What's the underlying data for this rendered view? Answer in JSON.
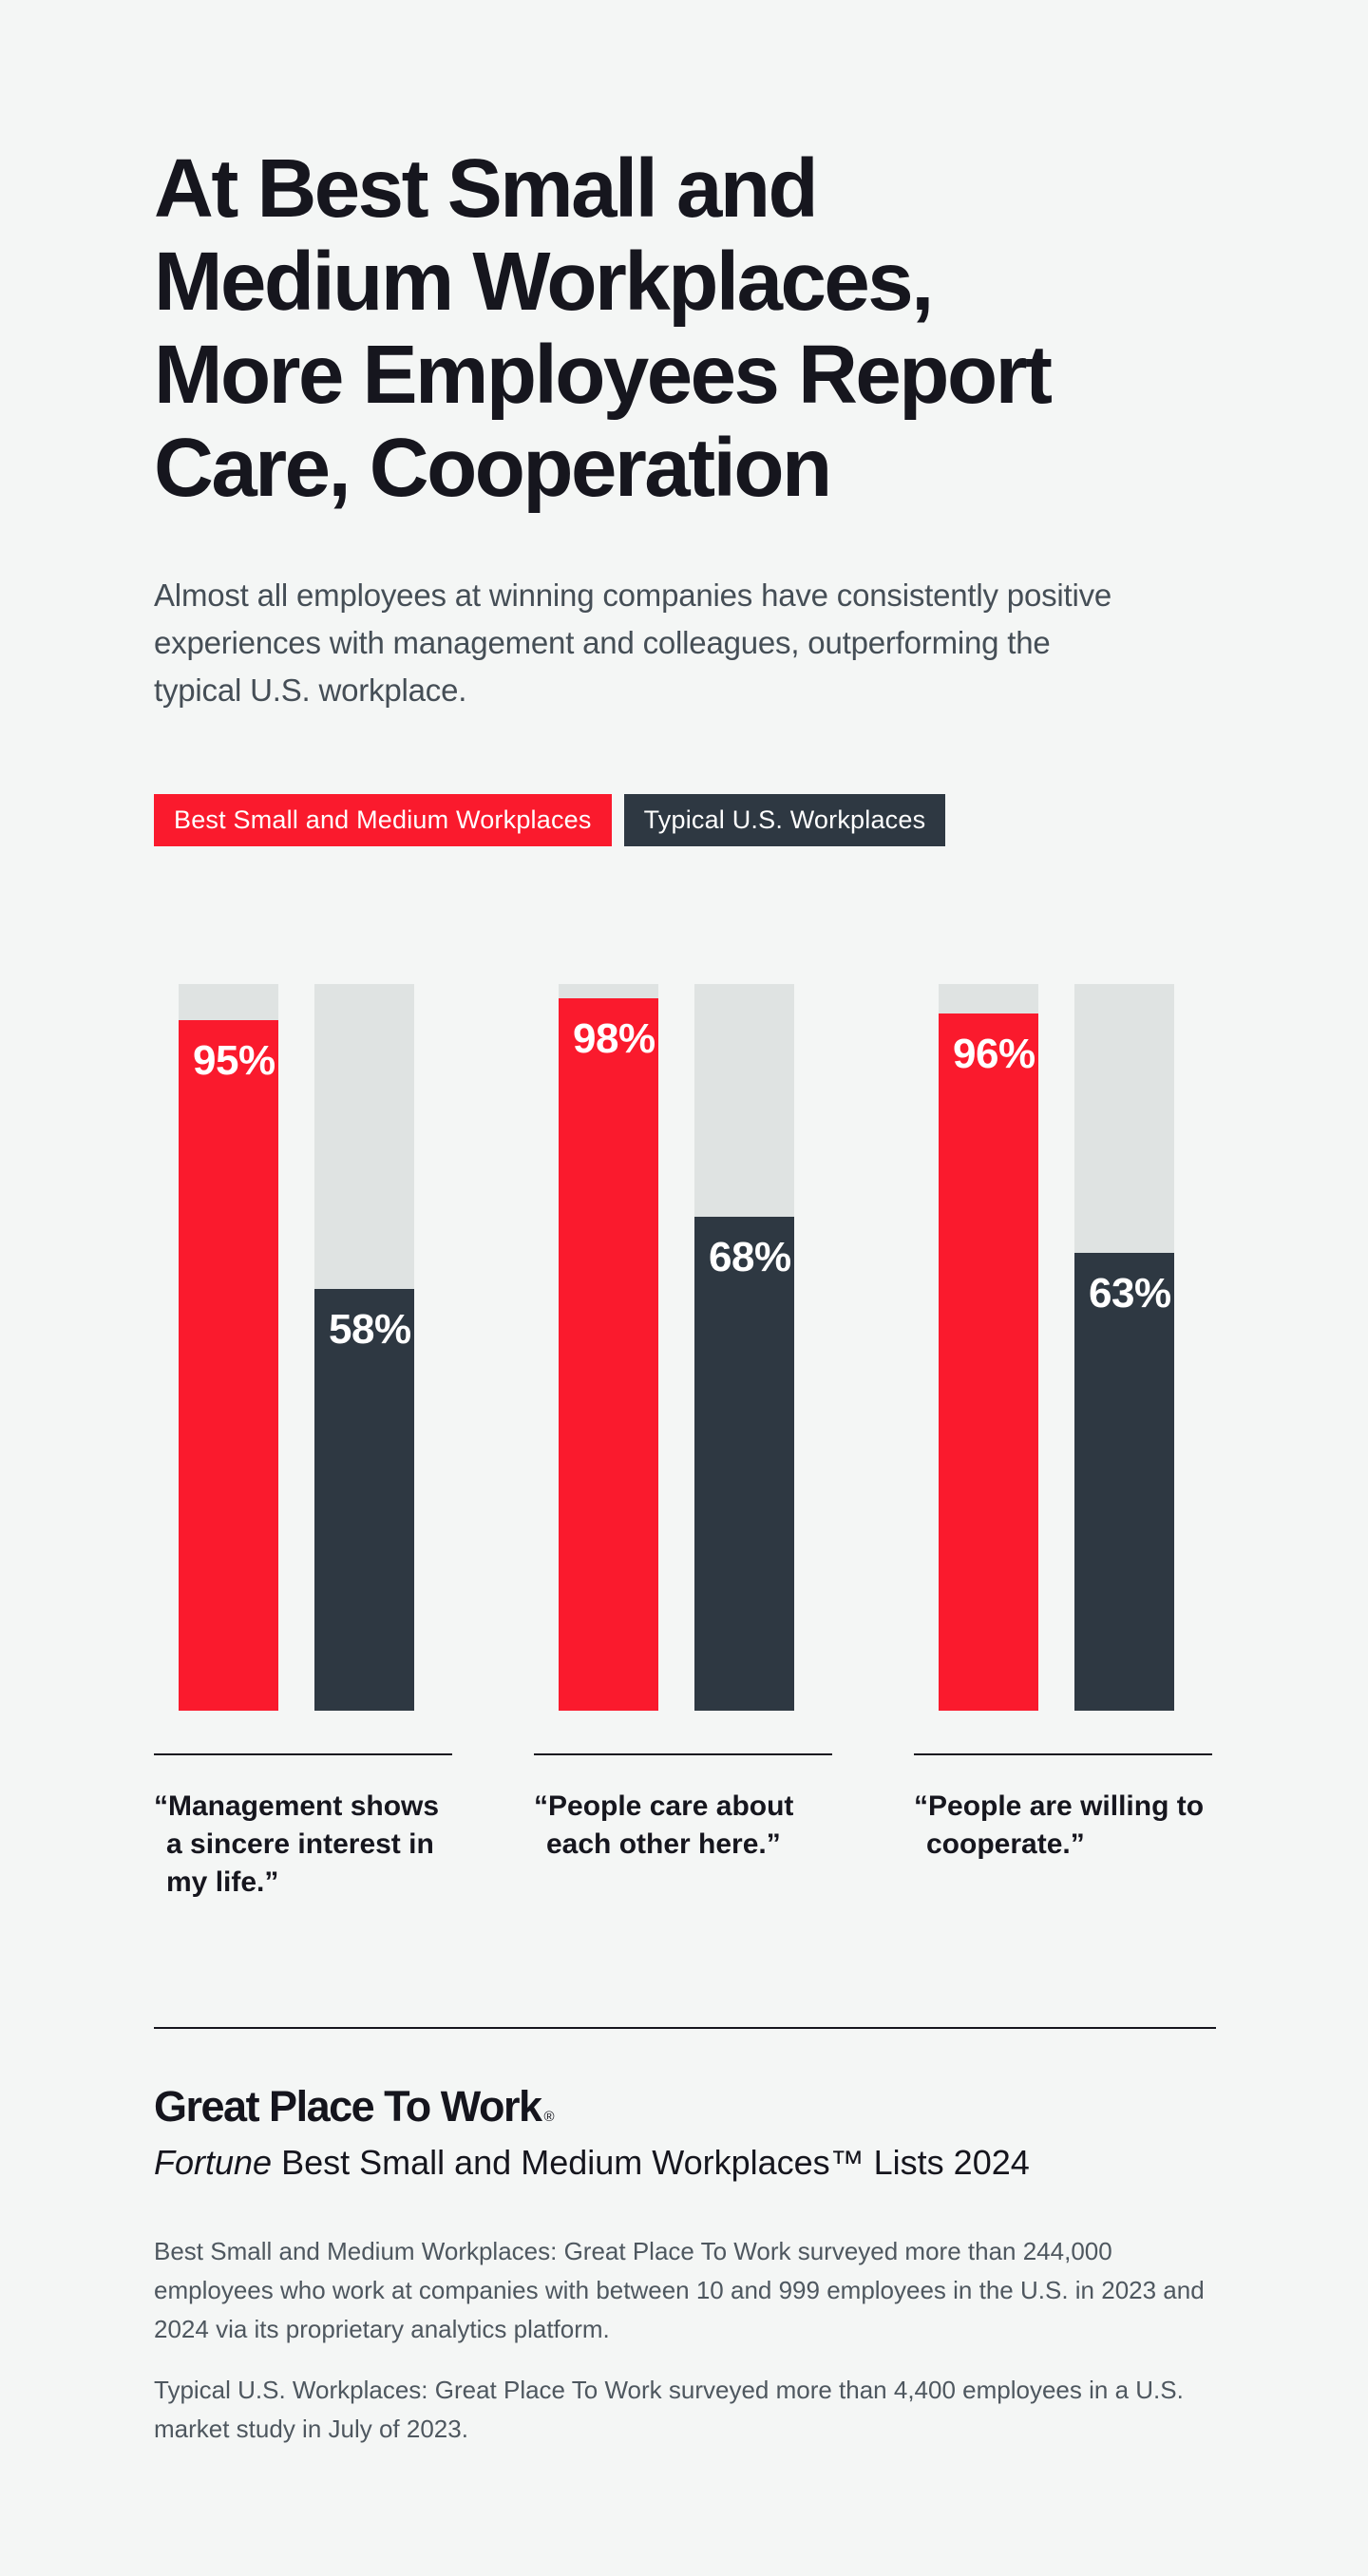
{
  "page": {
    "background": "#F4F6F5",
    "title_lines": [
      "At Best Small and",
      "Medium Workplaces,",
      "More Employees Report",
      "Care, Cooperation"
    ],
    "subtitle": "Almost all employees at winning companies have consistently positive experiences with management and colleagues, outperforming the typical U.S. workplace."
  },
  "legend": {
    "best_label": "Best Small and Medium Workplaces",
    "typical_label": "Typical U.S. Workplaces",
    "best_color": "#FA1A2D",
    "typical_color": "#2E3842"
  },
  "chart_data": {
    "type": "bar",
    "orientation": "vertical",
    "unit": "percent",
    "ylim": [
      0,
      100
    ],
    "grid": false,
    "legend_position": "top",
    "track_color": "#DFE3E2",
    "categories": [
      "“Management shows a sincere interest in my life.”",
      "“People care about each other here.”",
      "“People are willing to cooperate.”"
    ],
    "series": [
      {
        "name": "Best Small and Medium Workplaces",
        "color": "#FA1A2D",
        "values": [
          95,
          98,
          96
        ]
      },
      {
        "name": "Typical U.S. Workplaces",
        "color": "#2E3842",
        "values": [
          58,
          68,
          63
        ]
      }
    ],
    "value_labels": [
      [
        "95%",
        "58%"
      ],
      [
        "98%",
        "68%"
      ],
      [
        "96%",
        "63%"
      ]
    ]
  },
  "footer": {
    "logo_text": "Great Place To Work",
    "logo_registered": "®",
    "list_title_italic": "Fortune",
    "list_title_rest": " Best Small and Medium Workplaces™ Lists 2024",
    "footnote_best": "Best Small and Medium Workplaces: Great Place To Work surveyed more than 244,000 employees who work at companies with between 10 and 999 employees in the U.S. in 2023 and 2024 via its proprietary analytics platform.",
    "footnote_typical": "Typical U.S. Workplaces: Great Place To Work surveyed more than 4,400 employees in a U.S. market study in July of 2023."
  }
}
